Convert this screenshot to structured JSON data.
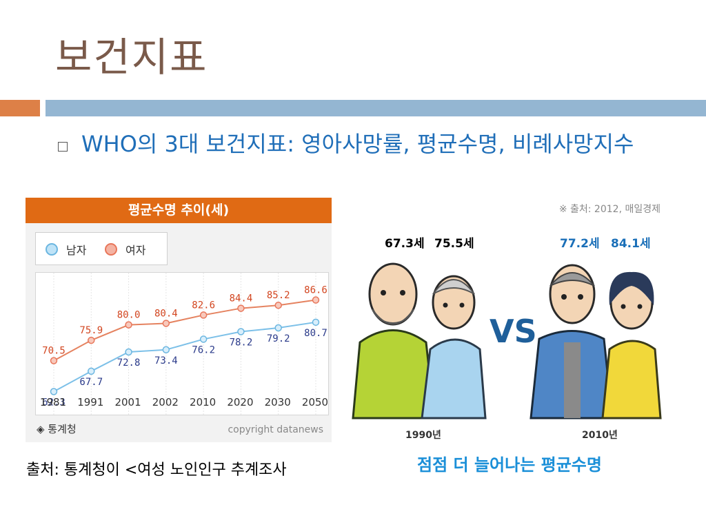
{
  "slide": {
    "title": "보건지표",
    "bullet": "WHO의 3대 보건지표: 영아사망률, 평균수명, 비례사망지수",
    "footer_source": "출처: 통계청이 <여성 노인인구 추계조사"
  },
  "colors": {
    "orange": "#dd8047",
    "blue": "#94b6d2",
    "text_blue": "#1f6eb8",
    "male": "#6bb6e0",
    "female": "#e8765a"
  },
  "chart_data": {
    "type": "line",
    "title": "평균수명 추이(세)",
    "categories": [
      "1981",
      "1991",
      "2001",
      "2002",
      "2010",
      "2020",
      "2030",
      "2050"
    ],
    "series": [
      {
        "name": "남자",
        "values": [
          62.3,
          67.7,
          72.8,
          73.4,
          76.2,
          78.2,
          79.2,
          80.7
        ]
      },
      {
        "name": "여자",
        "values": [
          70.5,
          75.9,
          80.0,
          80.4,
          82.6,
          84.4,
          85.2,
          86.6
        ]
      }
    ],
    "value_labels": {
      "남자": [
        "62.3",
        "67.7",
        "72.8",
        "73.4",
        "76.2",
        "78.2",
        "79.2",
        "80.7"
      ],
      "여자": [
        "70.5",
        "75.9",
        "80.0",
        "80.4",
        "82.6",
        "84.4",
        "85.2",
        "86.6"
      ]
    },
    "ylim": [
      58,
      92
    ],
    "grid": true,
    "legend_position": "top-left",
    "source": "◈ 통계청",
    "copyright": "copyright datanews"
  },
  "infographic": {
    "source": "※ 출처: 2012, 매일경제",
    "male_1990": "67.3세",
    "female_1990": "75.5세",
    "male_2010": "77.2세",
    "female_2010": "84.1세",
    "vs": "VS",
    "year_1990": "1990년",
    "year_2010": "2010년",
    "caption": "점점 더 늘어나는 평균수명"
  }
}
